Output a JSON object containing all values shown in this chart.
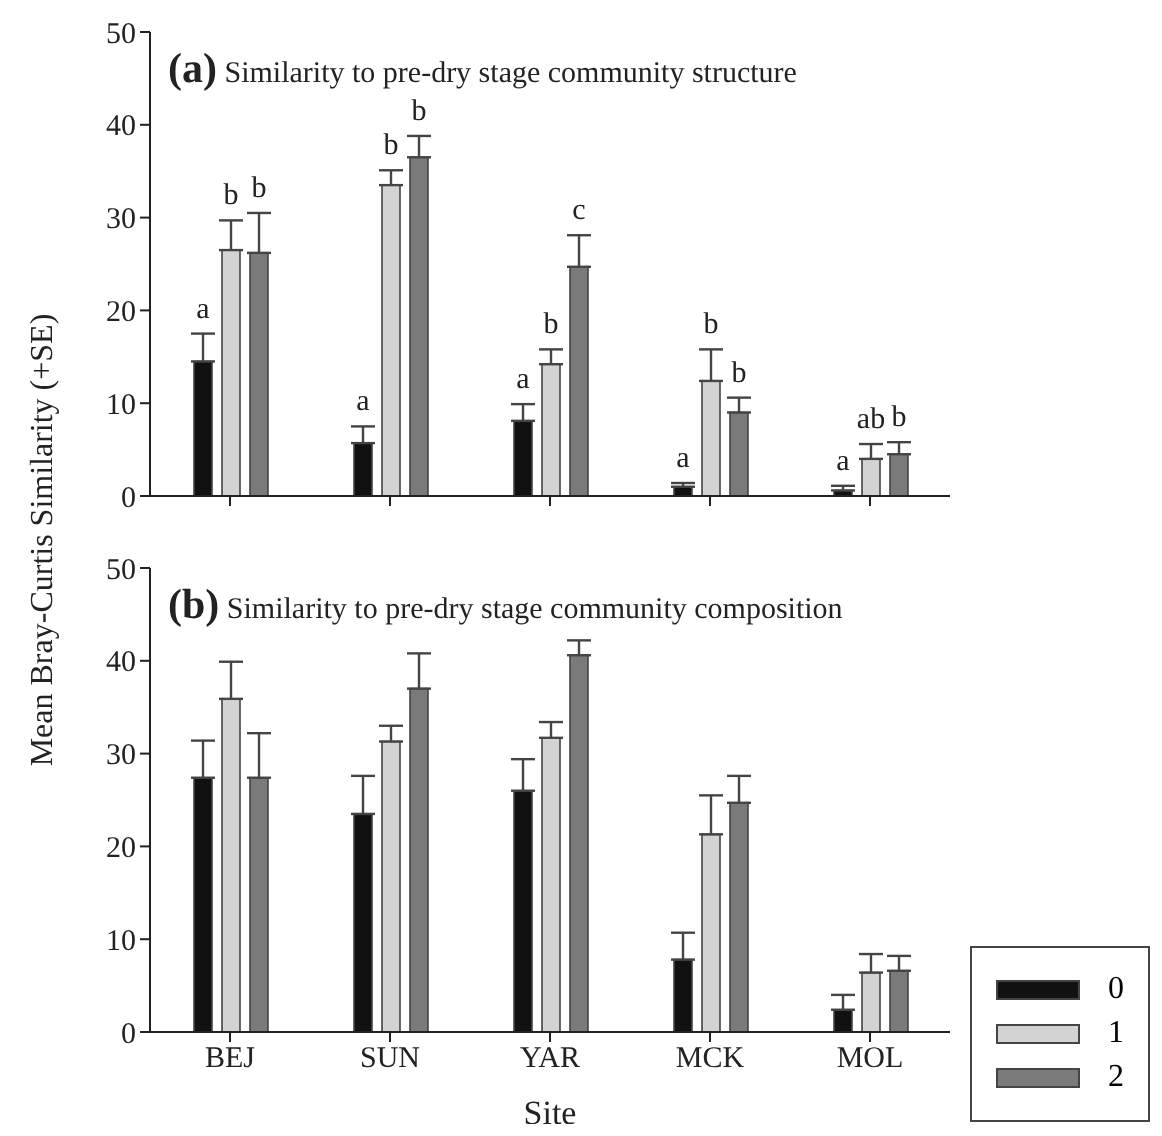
{
  "chart_data": [
    {
      "type": "bar",
      "title": "(a) Similarity to pre-dry stage community structure",
      "ylabel": "Mean Bray-Curtis Similarity (+SE)",
      "categories": [
        null,
        null,
        null,
        null,
        null
      ],
      "ylim": [
        0,
        50
      ],
      "yticks": [
        0,
        10,
        20,
        30,
        40,
        50
      ],
      "grid": false,
      "legend": false,
      "series": [
        {
          "color": "#111111",
          "values": [
            14.5,
            5.7,
            8.1,
            1.0,
            0.6
          ],
          "errors": [
            [
              14.5,
              17.5
            ],
            [
              5.7,
              7.5
            ],
            [
              8.1,
              9.9
            ],
            [
              1.0,
              1.4
            ],
            [
              0.6,
              1.1
            ]
          ],
          "value_labels": [
            "a",
            "a",
            "a",
            "a",
            "a"
          ]
        },
        {
          "color": "#d3d3d3",
          "values": [
            26.5,
            33.5,
            14.2,
            12.4,
            4.0
          ],
          "errors": [
            [
              26.5,
              29.7
            ],
            [
              33.5,
              35.1
            ],
            [
              14.2,
              15.8
            ],
            [
              12.4,
              15.8
            ],
            [
              4.0,
              5.6
            ]
          ],
          "value_labels": [
            "b",
            "b",
            "b",
            "b",
            "ab"
          ]
        },
        {
          "color": "#7a7a7a",
          "values": [
            26.2,
            36.5,
            24.7,
            9.0,
            4.5
          ],
          "errors": [
            [
              26.2,
              30.5
            ],
            [
              36.5,
              38.8
            ],
            [
              24.7,
              28.1
            ],
            [
              9.0,
              10.6
            ],
            [
              4.5,
              5.8
            ]
          ],
          "value_labels": [
            "b",
            "b",
            "c",
            "b",
            "b"
          ]
        }
      ]
    },
    {
      "type": "bar",
      "title": "(b) Similarity to pre-dry stage community composition",
      "xlabel": "Site",
      "categories": [
        "BEJ",
        "SUN",
        "YAR",
        "MCK",
        "MOL"
      ],
      "ylim": [
        0,
        50
      ],
      "yticks": [
        0,
        10,
        20,
        30,
        40,
        50
      ],
      "grid": false,
      "legend": "bottom right",
      "series": [
        {
          "name": "0",
          "color": "#111111",
          "values": [
            27.4,
            23.5,
            26.0,
            7.8,
            2.4
          ],
          "errors": [
            [
              27.4,
              31.4
            ],
            [
              23.5,
              27.6
            ],
            [
              26.0,
              29.4
            ],
            [
              7.8,
              10.7
            ],
            [
              2.4,
              4.0
            ]
          ]
        },
        {
          "name": "1",
          "color": "#d3d3d3",
          "values": [
            35.9,
            31.3,
            31.7,
            21.3,
            6.4
          ],
          "errors": [
            [
              35.9,
              39.9
            ],
            [
              31.3,
              33.0
            ],
            [
              31.7,
              33.4
            ],
            [
              21.3,
              25.5
            ],
            [
              6.4,
              8.4
            ]
          ]
        },
        {
          "name": "2",
          "color": "#7a7a7a",
          "values": [
            27.4,
            37.0,
            40.6,
            24.7,
            6.6
          ],
          "errors": [
            [
              27.4,
              32.2
            ],
            [
              37.0,
              40.8
            ],
            [
              40.6,
              42.2
            ],
            [
              24.7,
              27.6
            ],
            [
              6.6,
              8.2
            ]
          ]
        }
      ]
    }
  ]
}
